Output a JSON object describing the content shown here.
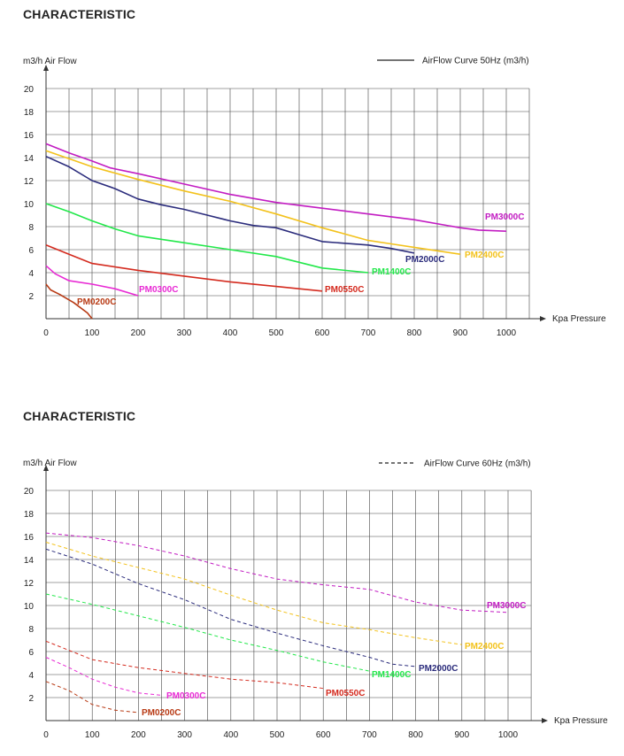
{
  "colors": {
    "PM3000C": "#c21cc2",
    "PM2400C": "#f3c21c",
    "PM2000C": "#2b2c7c",
    "PM1400C": "#22e84a",
    "PM0550C": "#d42a1e",
    "PM0300C": "#e82ad4",
    "PM0200C": "#b83a14",
    "legend_line": "#222222",
    "grid": "#444444"
  },
  "chart_data": [
    {
      "type": "line",
      "heading": "CHARACTERISTIC",
      "ylabel": "m3/h  Air Flow",
      "xlabel": "Kpa  Pressure",
      "legend": "AirFlow Curve 50Hz (m3/h)",
      "line_style": "solid",
      "xlim": [
        0,
        1000
      ],
      "ylim": [
        0,
        20
      ],
      "xticks": [
        0,
        100,
        200,
        300,
        400,
        500,
        600,
        700,
        800,
        900,
        1000
      ],
      "yticks": [
        2,
        4,
        6,
        8,
        10,
        12,
        14,
        16,
        18,
        20
      ],
      "series": [
        {
          "name": "PM3000C",
          "x": [
            0,
            50,
            100,
            140,
            200,
            300,
            400,
            500,
            600,
            700,
            800,
            900,
            940,
            1000
          ],
          "y": [
            15.2,
            14.4,
            13.7,
            13.1,
            12.6,
            11.7,
            10.8,
            10.1,
            9.6,
            9.1,
            8.6,
            7.9,
            7.7,
            7.6
          ]
        },
        {
          "name": "PM2400C",
          "x": [
            0,
            50,
            100,
            200,
            300,
            400,
            500,
            600,
            700,
            750,
            800,
            900
          ],
          "y": [
            14.6,
            13.9,
            13.2,
            12.1,
            11.1,
            10.2,
            9.1,
            7.9,
            6.8,
            6.5,
            6.2,
            5.6
          ]
        },
        {
          "name": "PM2000C",
          "x": [
            0,
            50,
            100,
            150,
            200,
            250,
            300,
            350,
            400,
            450,
            500,
            550,
            600,
            700,
            750,
            800
          ],
          "y": [
            14.1,
            13.2,
            12.0,
            11.3,
            10.4,
            9.9,
            9.5,
            9.0,
            8.5,
            8.1,
            7.9,
            7.3,
            6.7,
            6.4,
            6.1,
            5.7
          ]
        },
        {
          "name": "PM1400C",
          "x": [
            0,
            50,
            100,
            150,
            200,
            300,
            400,
            500,
            600,
            700
          ],
          "y": [
            10.0,
            9.3,
            8.5,
            7.8,
            7.2,
            6.6,
            6.0,
            5.4,
            4.4,
            4.0
          ]
        },
        {
          "name": "PM0550C",
          "x": [
            0,
            50,
            100,
            200,
            300,
            400,
            500,
            600
          ],
          "y": [
            6.4,
            5.6,
            4.8,
            4.2,
            3.7,
            3.2,
            2.8,
            2.4
          ]
        },
        {
          "name": "PM0300C",
          "x": [
            0,
            20,
            50,
            100,
            150,
            200
          ],
          "y": [
            4.6,
            3.9,
            3.3,
            3.0,
            2.6,
            2.0
          ]
        },
        {
          "name": "PM0200C",
          "x": [
            0,
            10,
            30,
            60,
            90,
            100
          ],
          "y": [
            3.0,
            2.5,
            2.1,
            1.4,
            0.5,
            0.0
          ]
        }
      ]
    },
    {
      "type": "line",
      "heading": "CHARACTERISTIC",
      "ylabel": "m3/h  Air Flow",
      "xlabel": "Kpa  Pressure",
      "legend": "AirFlow Curve 60Hz (m3/h)",
      "line_style": "dashed",
      "xlim": [
        0,
        1000
      ],
      "ylim": [
        0,
        20
      ],
      "xticks": [
        0,
        100,
        200,
        300,
        400,
        500,
        600,
        700,
        800,
        900,
        1000
      ],
      "yticks": [
        2,
        4,
        6,
        8,
        10,
        12,
        14,
        16,
        18,
        20
      ],
      "series": [
        {
          "name": "PM3000C",
          "x": [
            0,
            100,
            200,
            300,
            400,
            500,
            600,
            700,
            800,
            900,
            1000
          ],
          "y": [
            16.3,
            15.9,
            15.2,
            14.3,
            13.2,
            12.3,
            11.8,
            11.4,
            10.3,
            9.6,
            9.4
          ]
        },
        {
          "name": "PM2400C",
          "x": [
            0,
            100,
            200,
            300,
            400,
            500,
            600,
            700,
            800,
            900
          ],
          "y": [
            15.5,
            14.3,
            13.3,
            12.3,
            10.9,
            9.6,
            8.5,
            7.9,
            7.2,
            6.6
          ]
        },
        {
          "name": "PM2000C",
          "x": [
            0,
            100,
            200,
            300,
            400,
            500,
            600,
            700,
            750,
            800
          ],
          "y": [
            14.9,
            13.6,
            11.9,
            10.5,
            8.8,
            7.6,
            6.5,
            5.5,
            4.9,
            4.7
          ]
        },
        {
          "name": "PM1400C",
          "x": [
            0,
            100,
            200,
            300,
            400,
            500,
            600,
            700
          ],
          "y": [
            11.0,
            10.1,
            9.1,
            8.1,
            7.0,
            6.1,
            5.1,
            4.3
          ]
        },
        {
          "name": "PM0550C",
          "x": [
            0,
            100,
            200,
            300,
            400,
            500,
            600
          ],
          "y": [
            6.9,
            5.3,
            4.6,
            4.1,
            3.6,
            3.3,
            2.8
          ]
        },
        {
          "name": "PM0300C",
          "x": [
            0,
            50,
            100,
            150,
            200,
            250
          ],
          "y": [
            5.5,
            4.6,
            3.6,
            2.9,
            2.4,
            2.2
          ]
        },
        {
          "name": "PM0200C",
          "x": [
            0,
            50,
            100,
            150,
            200
          ],
          "y": [
            3.4,
            2.6,
            1.4,
            0.9,
            0.7
          ]
        }
      ]
    }
  ]
}
